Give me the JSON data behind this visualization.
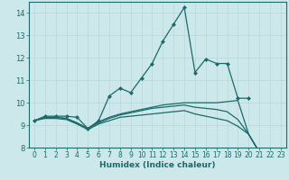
{
  "title": "",
  "xlabel": "Humidex (Indice chaleur)",
  "xlim": [
    -0.5,
    23.5
  ],
  "ylim": [
    8,
    14.5
  ],
  "yticks": [
    8,
    9,
    10,
    11,
    12,
    13,
    14
  ],
  "xticks": [
    0,
    1,
    2,
    3,
    4,
    5,
    6,
    7,
    8,
    9,
    10,
    11,
    12,
    13,
    14,
    15,
    16,
    17,
    18,
    19,
    20,
    21,
    22,
    23
  ],
  "bg_color": "#cde8ea",
  "grid_color": "#b8d8dc",
  "line_color": "#1a6b6a",
  "lines": [
    {
      "x": [
        0,
        1,
        2,
        3,
        4,
        5,
        6,
        7,
        8,
        9,
        10,
        11,
        12,
        13,
        14,
        15,
        16,
        17,
        18,
        19,
        20
      ],
      "y": [
        9.2,
        9.4,
        9.4,
        9.4,
        9.35,
        8.85,
        9.2,
        10.3,
        10.65,
        10.45,
        11.1,
        11.75,
        12.75,
        13.5,
        14.25,
        11.35,
        11.95,
        11.75,
        11.75,
        10.2,
        10.2
      ],
      "markers": true
    },
    {
      "x": [
        0,
        1,
        2,
        3,
        4,
        5,
        6,
        7,
        8,
        9,
        10,
        11,
        12,
        13,
        14,
        15,
        16,
        17,
        18,
        19,
        20,
        21,
        22,
        23
      ],
      "y": [
        9.2,
        9.35,
        9.35,
        9.3,
        9.1,
        8.85,
        9.15,
        9.35,
        9.5,
        9.6,
        9.7,
        9.8,
        9.9,
        9.95,
        10.0,
        10.0,
        10.0,
        10.0,
        10.05,
        10.1,
        8.6,
        7.8,
        7.65,
        7.8
      ],
      "markers": false
    },
    {
      "x": [
        0,
        1,
        2,
        3,
        4,
        5,
        6,
        7,
        8,
        9,
        10,
        11,
        12,
        13,
        14,
        15,
        16,
        17,
        18,
        19,
        20,
        21,
        22,
        23
      ],
      "y": [
        9.2,
        9.35,
        9.35,
        9.3,
        9.1,
        8.85,
        9.1,
        9.3,
        9.45,
        9.55,
        9.65,
        9.75,
        9.8,
        9.85,
        9.9,
        9.8,
        9.75,
        9.7,
        9.6,
        9.25,
        8.6,
        7.8,
        7.65,
        7.8
      ],
      "markers": false
    },
    {
      "x": [
        0,
        1,
        2,
        3,
        4,
        5,
        6,
        7,
        8,
        9,
        10,
        11,
        12,
        13,
        14,
        15,
        16,
        17,
        18,
        19,
        20,
        21,
        22,
        23
      ],
      "y": [
        9.2,
        9.3,
        9.3,
        9.25,
        9.05,
        8.8,
        9.05,
        9.2,
        9.35,
        9.4,
        9.45,
        9.5,
        9.55,
        9.6,
        9.65,
        9.5,
        9.4,
        9.3,
        9.2,
        8.95,
        8.6,
        7.8,
        7.65,
        7.8
      ],
      "markers": false
    }
  ]
}
